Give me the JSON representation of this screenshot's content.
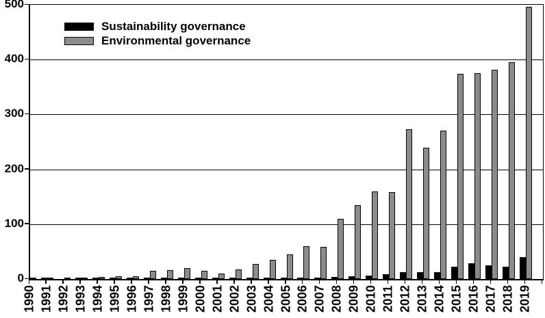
{
  "figure": {
    "background": "#ffffff",
    "text_color": "#000000"
  },
  "chart_data": {
    "type": "bar",
    "title": "",
    "xlabel": "",
    "ylabel": "",
    "categories": [
      "1990",
      "1991",
      "1992",
      "1993",
      "1994",
      "1995",
      "1996",
      "1997",
      "1998",
      "1999",
      "2000",
      "2001",
      "2002",
      "2003",
      "2004",
      "2005",
      "2006",
      "2007",
      "2008",
      "2009",
      "2010",
      "2011",
      "2012",
      "2013",
      "2014",
      "2015",
      "2016",
      "2017",
      "2018",
      "2019"
    ],
    "series": [
      {
        "name": "Sustainability governance",
        "color": "#000000",
        "values": [
          1,
          1,
          0,
          1,
          1,
          1,
          1,
          1,
          1,
          1,
          1,
          1,
          1,
          2,
          2,
          2,
          3,
          3,
          4,
          5,
          6,
          9,
          13,
          12,
          13,
          23,
          29,
          25,
          22,
          40
        ]
      },
      {
        "name": "Environmental governance",
        "color": "#8c8c8c",
        "values": [
          2,
          3,
          1,
          2,
          4,
          5,
          5,
          15,
          16,
          20,
          15,
          10,
          17,
          28,
          35,
          45,
          60,
          59,
          110,
          135,
          160,
          158,
          273,
          239,
          271,
          374,
          375,
          382,
          395,
          496
        ]
      }
    ],
    "ylim": [
      0,
      500
    ],
    "yticks": [
      0,
      100,
      200,
      300,
      400,
      500
    ],
    "grid": true,
    "gridline_color": "#000000",
    "bar_outline_color": "#000000",
    "legend_position": "top-left"
  }
}
